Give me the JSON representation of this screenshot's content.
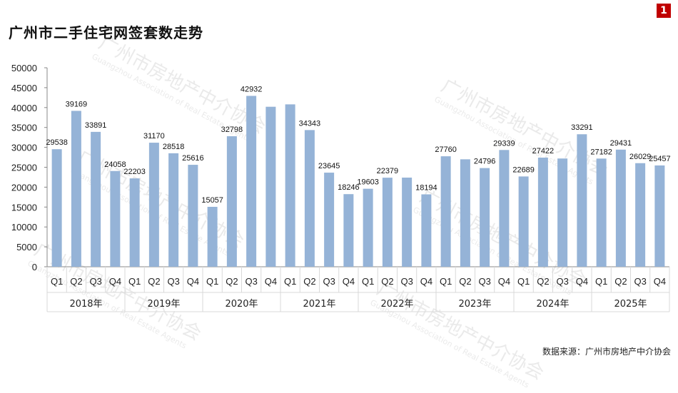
{
  "title": "广州市二手住宅网签套数走势",
  "page_badge": "1",
  "source": "数据来源：广州市房地产中介协会",
  "watermark": {
    "text": "广州市房地产中介协会",
    "subtext": "Guangzhou Association of Real Estate Agents"
  },
  "colors": {
    "bar": "#95b3d7",
    "bar_edge": "#7f9fc8",
    "axis": "#888888",
    "grid": "#d9d9d9",
    "badge": "#c00000"
  },
  "chart_data": {
    "type": "bar",
    "title": "广州市二手住宅网签套数走势",
    "xlabel": "",
    "ylabel": "",
    "ylim": [
      0,
      50000
    ],
    "yticks": [
      0,
      5000,
      10000,
      15000,
      20000,
      25000,
      30000,
      35000,
      40000,
      45000,
      50000
    ],
    "grid": false,
    "quarters": [
      "Q1",
      "Q2",
      "Q3",
      "Q4"
    ],
    "years": [
      "2018年",
      "2019年",
      "2020年",
      "2021年",
      "2022年",
      "2023年",
      "2024年",
      "2025年"
    ],
    "values": [
      29538,
      39169,
      33891,
      24058,
      22203,
      31170,
      28518,
      25616,
      15057,
      32798,
      42932,
      40200,
      40800,
      34343,
      23645,
      18246,
      19603,
      22379,
      22400,
      18194,
      27760,
      27000,
      24796,
      29339,
      22689,
      27422,
      27200,
      33291,
      27182,
      29431,
      26029,
      25457
    ],
    "labels": [
      "29538",
      "39169",
      "33891",
      "24058",
      "22203",
      "31170",
      "28518",
      "25616",
      "15057",
      "32798",
      "42932",
      "",
      "",
      "34343",
      "23645",
      "18246",
      "19603",
      "22379",
      "",
      "18194",
      "27760",
      "",
      "24796",
      "29339",
      "22689",
      "27422",
      "",
      "33291",
      "27182",
      "29431",
      "26029",
      "25457"
    ]
  }
}
